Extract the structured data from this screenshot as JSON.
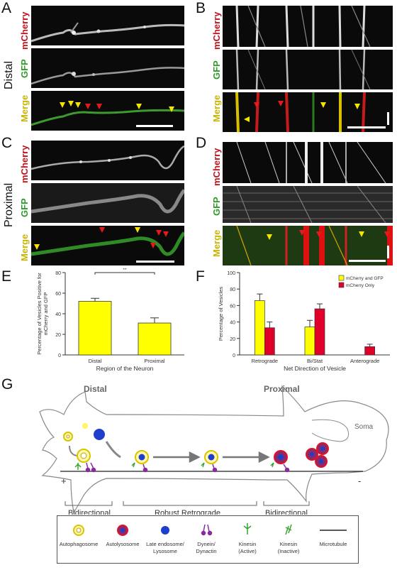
{
  "panels": {
    "A": "A",
    "B": "B",
    "C": "C",
    "D": "D",
    "E": "E",
    "F": "F",
    "G": "G"
  },
  "channels": {
    "mcherry": "mCherry",
    "gfp": "GFP",
    "merge": "Merge"
  },
  "regions": {
    "distal": "Distal",
    "proximal": "Proximal"
  },
  "chart_data": [
    {
      "type": "bar",
      "categories": [
        "Distal",
        "Proximal"
      ],
      "values": [
        52,
        31
      ],
      "errors": [
        3,
        5
      ],
      "ylabel": "Percentage of Vesicles Positive for mCherry and GFP",
      "xlabel": "Region of the Neuron",
      "ylim": [
        0,
        80
      ],
      "yticks": [
        0,
        20,
        40,
        60,
        80
      ],
      "significance": "**",
      "colors": [
        "#ffff00"
      ]
    },
    {
      "type": "bar",
      "categories": [
        "Retrograde",
        "Bi/Stat",
        "Anterograde"
      ],
      "series": [
        {
          "name": "mCherry and GFP",
          "values": [
            66,
            34,
            0
          ],
          "errors": [
            8,
            8,
            0
          ],
          "color": "#ffff00"
        },
        {
          "name": "mCherry Only",
          "values": [
            33,
            56,
            10
          ],
          "errors": [
            7,
            6,
            3
          ],
          "color": "#e0002a"
        }
      ],
      "ylabel": "Percentage of Vesicles",
      "xlabel": "Net Direction of Vesicle",
      "ylim": [
        0,
        100
      ],
      "yticks": [
        0,
        20,
        40,
        60,
        80,
        100
      ],
      "legend": "top-right"
    }
  ],
  "diagram": {
    "distal": "Distal",
    "proximal": "Proximal",
    "soma": "Soma",
    "plus": "+",
    "minus": "-",
    "zones": [
      "Bidirectional",
      "Robust Retrograde",
      "Bidirectional"
    ]
  },
  "legend": [
    {
      "label": "Autophagosome",
      "icon": "autophagosome-icon"
    },
    {
      "label": "Autolysosome",
      "icon": "autolysosome-icon"
    },
    {
      "label": "Late endosome/ Lysosome",
      "icon": "late-endosome-icon"
    },
    {
      "label": "Dynein/ Dynactin",
      "icon": "dynein-icon"
    },
    {
      "label": "Kinesin (Active)",
      "icon": "kinesin-active-icon"
    },
    {
      "label": "Kinesin (Inactive)",
      "icon": "kinesin-inactive-icon"
    },
    {
      "label": "Microtubule",
      "icon": "microtubule-icon"
    }
  ]
}
